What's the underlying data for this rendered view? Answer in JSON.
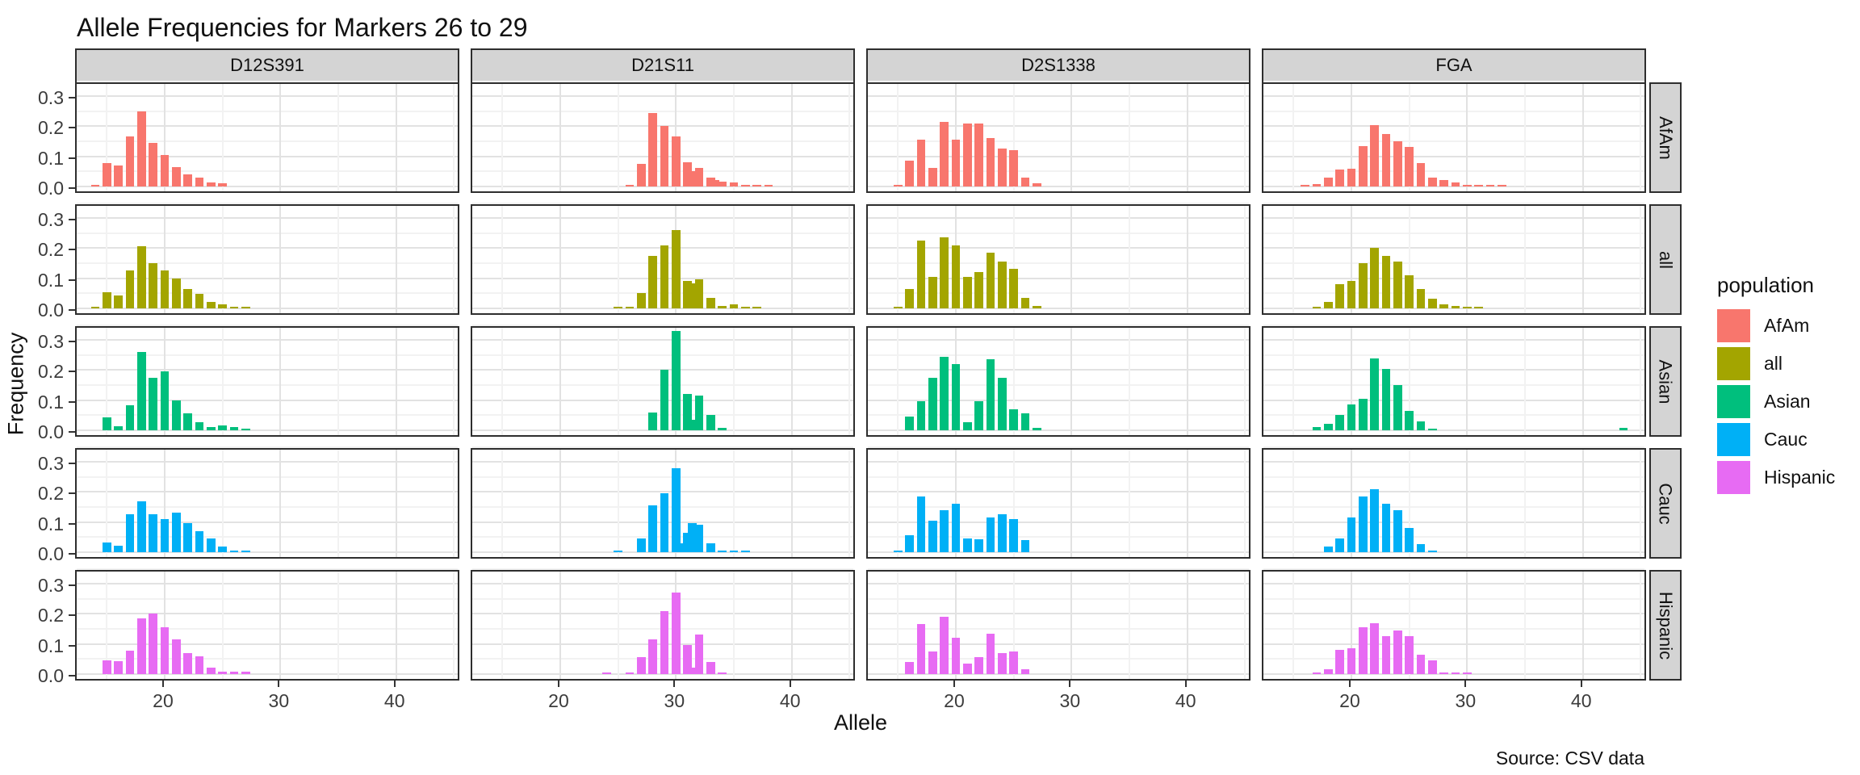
{
  "chart_data": {
    "type": "bar",
    "title": "Allele Frequencies for Markers 26 to 29",
    "xlabel": "Allele",
    "ylabel": "Frequency",
    "caption": "Source: CSV data",
    "facet_columns": [
      "D12S391",
      "D21S11",
      "D2S1338",
      "FGA"
    ],
    "facet_rows": [
      "AfAm",
      "all",
      "Asian",
      "Cauc",
      "Hispanic"
    ],
    "x_range": [
      12.4,
      45.6
    ],
    "x_ticks": [
      20,
      30,
      40
    ],
    "x_minor_ticks": [
      15,
      25,
      35,
      45
    ],
    "y_range": [
      -0.017,
      0.352
    ],
    "y_ticks": [
      {
        "label": "0.0",
        "value": 0
      },
      {
        "label": "0.1",
        "value": 0.1
      },
      {
        "label": "0.2",
        "value": 0.2
      },
      {
        "label": "0.3",
        "value": 0.3
      }
    ],
    "y_minor_ticks": [
      0.05,
      0.15,
      0.25,
      0.35
    ],
    "grid": true,
    "legend_position": "right",
    "legend": {
      "title": "population",
      "entries": [
        {
          "label": "AfAm",
          "color": "#F8766D"
        },
        {
          "label": "all",
          "color": "#A3A500"
        },
        {
          "label": "Asian",
          "color": "#00BF7D"
        },
        {
          "label": "Cauc",
          "color": "#00B0F6"
        },
        {
          "label": "Hispanic",
          "color": "#E76BF3"
        }
      ]
    },
    "panels": [
      {
        "marker": "D12S391",
        "population": "AfAm",
        "color": "#F8766D",
        "bars": [
          [
            14,
            0.003
          ],
          [
            15,
            0.078
          ],
          [
            16,
            0.068
          ],
          [
            17,
            0.165
          ],
          [
            18,
            0.25
          ],
          [
            19,
            0.145
          ],
          [
            20,
            0.105
          ],
          [
            21,
            0.063
          ],
          [
            22,
            0.04
          ],
          [
            23,
            0.03
          ],
          [
            24,
            0.012
          ],
          [
            25,
            0.01
          ]
        ]
      },
      {
        "marker": "D12S391",
        "population": "all",
        "color": "#A3A500",
        "bars": [
          [
            14,
            0.002
          ],
          [
            15,
            0.052
          ],
          [
            16,
            0.042
          ],
          [
            17,
            0.125
          ],
          [
            18,
            0.207
          ],
          [
            19,
            0.15
          ],
          [
            20,
            0.125
          ],
          [
            21,
            0.1
          ],
          [
            22,
            0.065
          ],
          [
            23,
            0.048
          ],
          [
            24,
            0.022
          ],
          [
            25,
            0.012
          ],
          [
            26,
            0.004
          ],
          [
            27,
            0.003
          ]
        ]
      },
      {
        "marker": "D12S391",
        "population": "Asian",
        "color": "#00BF7D",
        "bars": [
          [
            15,
            0.042
          ],
          [
            16,
            0.012
          ],
          [
            17,
            0.082
          ],
          [
            18,
            0.26
          ],
          [
            19,
            0.175
          ],
          [
            20,
            0.195
          ],
          [
            21,
            0.1
          ],
          [
            22,
            0.055
          ],
          [
            23,
            0.027
          ],
          [
            24,
            0.01
          ],
          [
            25,
            0.016
          ],
          [
            26,
            0.01
          ],
          [
            27,
            0.005
          ]
        ]
      },
      {
        "marker": "D12S391",
        "population": "Cauc",
        "color": "#00B0F6",
        "bars": [
          [
            15,
            0.032
          ],
          [
            16,
            0.022
          ],
          [
            17,
            0.125
          ],
          [
            18,
            0.17
          ],
          [
            19,
            0.125
          ],
          [
            20,
            0.11
          ],
          [
            21,
            0.13
          ],
          [
            22,
            0.095
          ],
          [
            23,
            0.07
          ],
          [
            24,
            0.045
          ],
          [
            25,
            0.017
          ],
          [
            26,
            0.004
          ],
          [
            27,
            0.003
          ]
        ]
      },
      {
        "marker": "D12S391",
        "population": "Hispanic",
        "color": "#E76BF3",
        "bars": [
          [
            15,
            0.046
          ],
          [
            16,
            0.042
          ],
          [
            17,
            0.078
          ],
          [
            18,
            0.185
          ],
          [
            19,
            0.2
          ],
          [
            20,
            0.155
          ],
          [
            21,
            0.115
          ],
          [
            22,
            0.068
          ],
          [
            23,
            0.058
          ],
          [
            24,
            0.02
          ],
          [
            25,
            0.006
          ],
          [
            26,
            0.006
          ],
          [
            27,
            0.006
          ]
        ]
      },
      {
        "marker": "D21S11",
        "population": "AfAm",
        "color": "#F8766D",
        "bars": [
          [
            26,
            0.005
          ],
          [
            27,
            0.075
          ],
          [
            28,
            0.245
          ],
          [
            29,
            0.2
          ],
          [
            30,
            0.165
          ],
          [
            31,
            0.08
          ],
          [
            31.4,
            0.05
          ],
          [
            32,
            0.06
          ],
          [
            33,
            0.03
          ],
          [
            33.4,
            0.02
          ],
          [
            34,
            0.015
          ],
          [
            35,
            0.012
          ],
          [
            36,
            0.005
          ],
          [
            37,
            0.004
          ],
          [
            38,
            0.003
          ]
        ]
      },
      {
        "marker": "D21S11",
        "population": "all",
        "color": "#A3A500",
        "bars": [
          [
            25,
            0.003
          ],
          [
            26,
            0.004
          ],
          [
            27,
            0.05
          ],
          [
            28,
            0.175
          ],
          [
            29,
            0.21
          ],
          [
            30,
            0.26
          ],
          [
            31,
            0.09
          ],
          [
            31.4,
            0.082
          ],
          [
            32,
            0.095
          ],
          [
            33,
            0.035
          ],
          [
            34,
            0.006
          ],
          [
            35,
            0.012
          ],
          [
            36,
            0.004
          ],
          [
            37,
            0.003
          ]
        ]
      },
      {
        "marker": "D21S11",
        "population": "Asian",
        "color": "#00BF7D",
        "bars": [
          [
            28,
            0.058
          ],
          [
            29,
            0.2
          ],
          [
            30,
            0.33
          ],
          [
            31,
            0.12
          ],
          [
            31.4,
            0.035
          ],
          [
            32,
            0.115
          ],
          [
            33,
            0.05
          ],
          [
            34,
            0.008
          ]
        ]
      },
      {
        "marker": "D21S11",
        "population": "Cauc",
        "color": "#00B0F6",
        "bars": [
          [
            25,
            0.003
          ],
          [
            27,
            0.045
          ],
          [
            28,
            0.155
          ],
          [
            29,
            0.195
          ],
          [
            30,
            0.28
          ],
          [
            30.4,
            0.03
          ],
          [
            31,
            0.065
          ],
          [
            31.4,
            0.095
          ],
          [
            32,
            0.09
          ],
          [
            33,
            0.03
          ],
          [
            34,
            0.005
          ],
          [
            35,
            0.004
          ],
          [
            36,
            0.004
          ]
        ]
      },
      {
        "marker": "D21S11",
        "population": "Hispanic",
        "color": "#E76BF3",
        "bars": [
          [
            24,
            0.004
          ],
          [
            26,
            0.004
          ],
          [
            27,
            0.055
          ],
          [
            28,
            0.115
          ],
          [
            29,
            0.21
          ],
          [
            30,
            0.27
          ],
          [
            31,
            0.095
          ],
          [
            31.4,
            0.02
          ],
          [
            32,
            0.13
          ],
          [
            33,
            0.04
          ],
          [
            34,
            0.005
          ]
        ]
      },
      {
        "marker": "D2S1338",
        "population": "AfAm",
        "color": "#F8766D",
        "bars": [
          [
            15,
            0.004
          ],
          [
            16,
            0.085
          ],
          [
            17,
            0.155
          ],
          [
            18,
            0.062
          ],
          [
            19,
            0.215
          ],
          [
            20,
            0.155
          ],
          [
            21,
            0.21
          ],
          [
            22,
            0.21
          ],
          [
            23,
            0.16
          ],
          [
            24,
            0.125
          ],
          [
            25,
            0.12
          ],
          [
            26,
            0.028
          ],
          [
            27,
            0.01
          ]
        ]
      },
      {
        "marker": "D2S1338",
        "population": "all",
        "color": "#A3A500",
        "bars": [
          [
            15,
            0.003
          ],
          [
            16,
            0.065
          ],
          [
            17,
            0.225
          ],
          [
            18,
            0.105
          ],
          [
            19,
            0.235
          ],
          [
            20,
            0.21
          ],
          [
            21,
            0.105
          ],
          [
            22,
            0.12
          ],
          [
            23,
            0.185
          ],
          [
            24,
            0.155
          ],
          [
            25,
            0.13
          ],
          [
            26,
            0.035
          ],
          [
            27,
            0.006
          ]
        ]
      },
      {
        "marker": "D2S1338",
        "population": "Asian",
        "color": "#00BF7D",
        "bars": [
          [
            16,
            0.045
          ],
          [
            17,
            0.095
          ],
          [
            18,
            0.175
          ],
          [
            19,
            0.245
          ],
          [
            20,
            0.22
          ],
          [
            21,
            0.025
          ],
          [
            22,
            0.095
          ],
          [
            23,
            0.235
          ],
          [
            24,
            0.175
          ],
          [
            25,
            0.07
          ],
          [
            26,
            0.055
          ],
          [
            27,
            0.008
          ]
        ]
      },
      {
        "marker": "D2S1338",
        "population": "Cauc",
        "color": "#00B0F6",
        "bars": [
          [
            15,
            0.003
          ],
          [
            16,
            0.055
          ],
          [
            17,
            0.185
          ],
          [
            18,
            0.105
          ],
          [
            19,
            0.14
          ],
          [
            20,
            0.16
          ],
          [
            21,
            0.045
          ],
          [
            22,
            0.042
          ],
          [
            23,
            0.115
          ],
          [
            24,
            0.125
          ],
          [
            25,
            0.11
          ],
          [
            26,
            0.04
          ]
        ]
      },
      {
        "marker": "D2S1338",
        "population": "Hispanic",
        "color": "#E76BF3",
        "bars": [
          [
            16,
            0.04
          ],
          [
            17,
            0.165
          ],
          [
            18,
            0.075
          ],
          [
            19,
            0.19
          ],
          [
            20,
            0.12
          ],
          [
            21,
            0.035
          ],
          [
            22,
            0.055
          ],
          [
            23,
            0.135
          ],
          [
            24,
            0.07
          ],
          [
            25,
            0.075
          ],
          [
            26,
            0.015
          ]
        ]
      },
      {
        "marker": "FGA",
        "population": "AfAm",
        "color": "#F8766D",
        "bars": [
          [
            16,
            0.004
          ],
          [
            17,
            0.006
          ],
          [
            18,
            0.028
          ],
          [
            19,
            0.055
          ],
          [
            20,
            0.058
          ],
          [
            21,
            0.135
          ],
          [
            22,
            0.205
          ],
          [
            23,
            0.175
          ],
          [
            24,
            0.15
          ],
          [
            25,
            0.13
          ],
          [
            26,
            0.078
          ],
          [
            27,
            0.028
          ],
          [
            28,
            0.02
          ],
          [
            29,
            0.012
          ],
          [
            30,
            0.005
          ],
          [
            31,
            0.004
          ],
          [
            32,
            0.003
          ],
          [
            33,
            0.003
          ]
        ]
      },
      {
        "marker": "FGA",
        "population": "all",
        "color": "#A3A500",
        "bars": [
          [
            17,
            0.004
          ],
          [
            18,
            0.022
          ],
          [
            19,
            0.08
          ],
          [
            20,
            0.09
          ],
          [
            21,
            0.15
          ],
          [
            22,
            0.2
          ],
          [
            23,
            0.175
          ],
          [
            24,
            0.155
          ],
          [
            25,
            0.11
          ],
          [
            26,
            0.065
          ],
          [
            27,
            0.032
          ],
          [
            28,
            0.012
          ],
          [
            29,
            0.006
          ],
          [
            30,
            0.004
          ],
          [
            31,
            0.003
          ]
        ]
      },
      {
        "marker": "FGA",
        "population": "Asian",
        "color": "#00BF7D",
        "bars": [
          [
            17,
            0.01
          ],
          [
            18,
            0.022
          ],
          [
            19,
            0.05
          ],
          [
            20,
            0.085
          ],
          [
            21,
            0.105
          ],
          [
            22,
            0.24
          ],
          [
            23,
            0.205
          ],
          [
            24,
            0.15
          ],
          [
            25,
            0.065
          ],
          [
            26,
            0.03
          ],
          [
            27,
            0.005
          ],
          [
            43.5,
            0.006
          ]
        ]
      },
      {
        "marker": "FGA",
        "population": "Cauc",
        "color": "#00B0F6",
        "bars": [
          [
            18,
            0.018
          ],
          [
            19,
            0.045
          ],
          [
            20,
            0.115
          ],
          [
            21,
            0.185
          ],
          [
            22,
            0.21
          ],
          [
            23,
            0.16
          ],
          [
            24,
            0.14
          ],
          [
            25,
            0.08
          ],
          [
            26,
            0.025
          ],
          [
            27,
            0.004
          ]
        ]
      },
      {
        "marker": "FGA",
        "population": "Hispanic",
        "color": "#E76BF3",
        "bars": [
          [
            17,
            0.003
          ],
          [
            18,
            0.015
          ],
          [
            19,
            0.08
          ],
          [
            20,
            0.085
          ],
          [
            21,
            0.155
          ],
          [
            22,
            0.17
          ],
          [
            23,
            0.125
          ],
          [
            24,
            0.145
          ],
          [
            25,
            0.125
          ],
          [
            26,
            0.065
          ],
          [
            27,
            0.045
          ],
          [
            28,
            0.004
          ],
          [
            29,
            0.003
          ],
          [
            30,
            0.003
          ]
        ]
      }
    ]
  }
}
